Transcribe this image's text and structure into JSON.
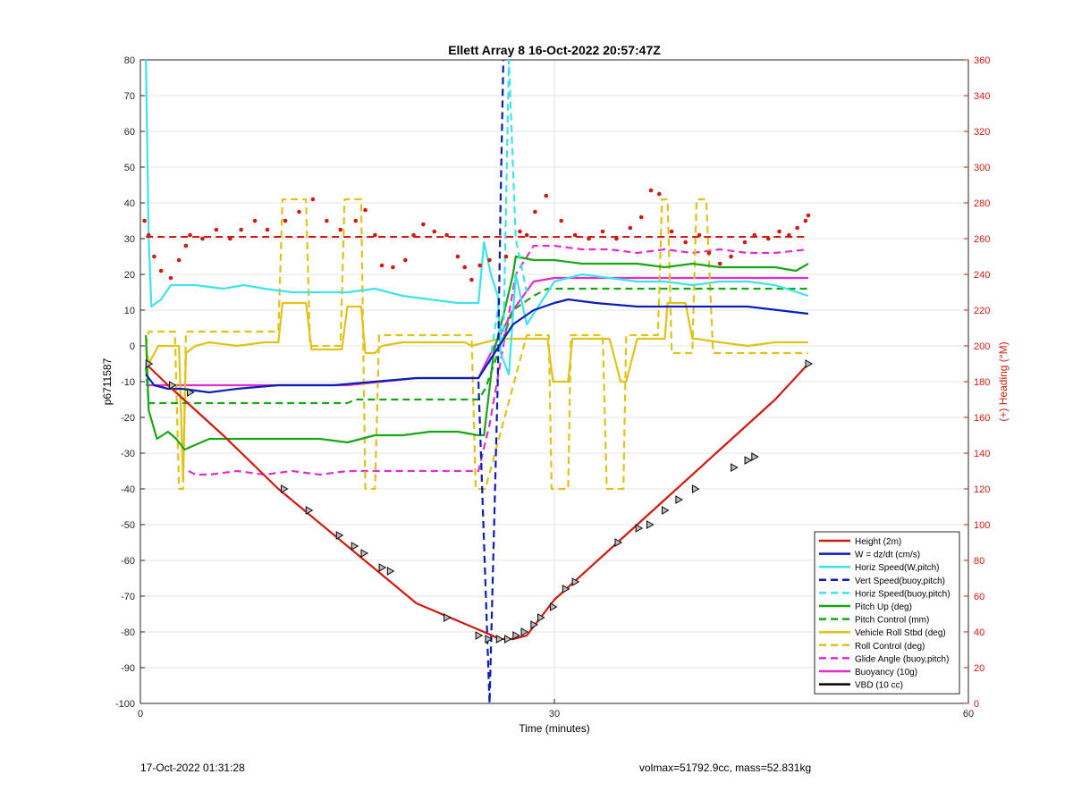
{
  "footer": {
    "left": "17-Oct-2022 01:31:28",
    "right": "volmax=51792.9cc, mass=52.831kg"
  },
  "chart_data": {
    "type": "line",
    "title": "Ellett Array 8 16-Oct-2022 20:57:47Z",
    "xlabel": "Time (minutes)",
    "ylabel": "p6711587",
    "y2label": "(+) Heading (°M)",
    "xlim": [
      0,
      60
    ],
    "ylim": [
      -100,
      80
    ],
    "y2lim": [
      0,
      360
    ],
    "xticks": [
      "0",
      "30",
      "60"
    ],
    "yticks": [
      "80",
      "70",
      "60",
      "50",
      "40",
      "30",
      "20",
      "10",
      "0",
      "-10",
      "-20",
      "-30",
      "-40",
      "-50",
      "-60",
      "-70",
      "-80",
      "-90",
      "-100"
    ],
    "y2ticks": [
      "360",
      "340",
      "320",
      "300",
      "280",
      "260",
      "240",
      "220",
      "200",
      "180",
      "160",
      "140",
      "120",
      "100",
      "80",
      "60",
      "40",
      "20",
      "0"
    ],
    "grid": true,
    "legend_position": "bottom-right",
    "colors": {
      "red": "#d11a0f",
      "blue": "#0a1eb4",
      "cyan": "#3ee3ea",
      "green": "#16a616",
      "yellow": "#e0c218",
      "magenta": "#de2ed2",
      "black": "#000000"
    },
    "series": [
      {
        "name": "Height (2m)",
        "color": "red",
        "style": "solid",
        "x": [
          0.4,
          2,
          6,
          10,
          15,
          20,
          25.5,
          26,
          27,
          28,
          30,
          34,
          38,
          42,
          46,
          48.4
        ],
        "y": [
          -5,
          -11,
          -25,
          -40,
          -56,
          -72,
          -81,
          -82,
          -82,
          -81,
          -71,
          -57,
          -43,
          -29,
          -15,
          -5
        ]
      },
      {
        "name": "W = dz/dt (cm/s)",
        "color": "blue",
        "style": "solid",
        "x": [
          0.4,
          1,
          2,
          3,
          5,
          7,
          10,
          14,
          17,
          20,
          22,
          24.5,
          25.5,
          27,
          28.5,
          30,
          31,
          33,
          36,
          40,
          44,
          48.4
        ],
        "y": [
          -8,
          -11,
          -12,
          -12,
          -13,
          -12,
          -11,
          -11,
          -10,
          -9,
          -9,
          -9,
          -3,
          6,
          10,
          12,
          13,
          12,
          11,
          11,
          11,
          9
        ]
      },
      {
        "name": "Horiz Speed(W,pitch)",
        "color": "cyan",
        "style": "solid",
        "x": [
          0.4,
          0.6,
          0.8,
          1.5,
          2.2,
          4,
          6,
          7.5,
          9,
          11,
          13,
          15,
          17,
          19,
          21,
          23,
          24.5,
          24.9,
          25.4,
          25.9,
          26.1,
          26.7,
          27.2,
          28,
          29,
          30,
          32,
          34,
          36,
          38,
          40,
          42,
          44,
          46,
          48.4
        ],
        "y": [
          80,
          30,
          11,
          13,
          17,
          17,
          16,
          17,
          16,
          15,
          15,
          15,
          16,
          14,
          13,
          12,
          12,
          29,
          20,
          14,
          -2,
          -8,
          20,
          6,
          12,
          18,
          20,
          19,
          18,
          18,
          17,
          18,
          18,
          17,
          14
        ]
      },
      {
        "name": "Vert Speed(buoy,pitch)",
        "color": "blue",
        "style": "dash",
        "x": [
          24.5,
          25.3,
          25.6,
          25.9,
          26.1,
          26.3,
          26.7,
          27.2
        ],
        "y": [
          -10,
          -100,
          -55,
          -10,
          40,
          80,
          100,
          100
        ]
      },
      {
        "name": "Horiz Speed(buoy,pitch)",
        "color": "cyan",
        "style": "dash",
        "x": [
          25.3,
          25.9,
          26.3,
          26.7,
          27.2,
          28
        ],
        "y": [
          -5,
          10,
          0,
          80,
          30,
          15
        ]
      },
      {
        "name": "Pitch Up (deg)",
        "color": "green",
        "style": "solid",
        "x": [
          0.4,
          0.6,
          1.2,
          2,
          2.6,
          3.2,
          5,
          7,
          9,
          11,
          13,
          15,
          17,
          19,
          21,
          23,
          24.5,
          24.9,
          25.6,
          26.4,
          27,
          27.2,
          28.5,
          30,
          32,
          34,
          36,
          38,
          40,
          42,
          44,
          46,
          47.5,
          48.4
        ],
        "y": [
          3,
          -18,
          -26,
          -24,
          -26,
          -29,
          -26,
          -26,
          -26,
          -26,
          -26,
          -27,
          -25,
          -25,
          -24,
          -24,
          -25,
          -25,
          -2,
          10,
          20,
          25,
          24,
          24,
          23,
          23,
          23,
          22,
          23,
          22,
          22,
          22,
          21,
          23
        ]
      },
      {
        "name": "Pitch Control (mm)",
        "color": "green",
        "style": "dash",
        "x": [
          0.4,
          0.6,
          1.2,
          10,
          15,
          15.6,
          20,
          24.5,
          25,
          27,
          28.5,
          29.5,
          48.4
        ],
        "y": [
          -6,
          -16,
          -16,
          -16,
          -16,
          -15,
          -15,
          -15,
          -12,
          10,
          14,
          16,
          16
        ]
      },
      {
        "name": "Vehicle Roll Stbd (deg)",
        "color": "yellow",
        "style": "solid",
        "x": [
          0.4,
          0.6,
          1.3,
          2.8,
          3.1,
          3.3,
          4,
          5,
          7,
          9,
          10,
          10.3,
          12,
          12.4,
          14.6,
          15,
          16,
          16.3,
          17,
          17.5,
          19,
          21,
          22,
          22.3,
          23.3,
          23.5,
          24,
          26,
          28,
          29.5,
          29.9,
          31,
          31.3,
          32,
          34,
          34.8,
          35.2,
          36,
          37,
          38,
          38.2,
          39.5,
          40,
          40.3,
          42,
          44,
          46,
          48.4
        ],
        "y": [
          0,
          -5,
          0,
          0,
          -38,
          -2,
          0,
          1,
          0,
          1,
          1,
          12,
          12,
          -1,
          -1,
          11,
          11,
          -2,
          -2,
          0,
          1,
          1,
          1,
          1,
          1,
          1,
          0,
          2,
          2,
          2,
          -10,
          -10,
          2,
          2,
          2,
          -10,
          -10,
          2,
          2,
          2,
          12,
          12,
          2,
          2,
          1,
          0,
          1,
          1
        ]
      },
      {
        "name": "Roll Control (deg)",
        "color": "yellow",
        "style": "dash",
        "x": [
          0.4,
          0.6,
          1.2,
          2.5,
          2.8,
          3.1,
          3.3,
          10,
          10.3,
          12,
          12.3,
          14.5,
          14.8,
          16,
          16.3,
          17,
          17.3,
          24,
          24.3,
          25,
          28,
          29.6,
          29.8,
          31,
          31.2,
          33.5,
          33.8,
          35,
          35.2,
          37.5,
          37.8,
          38.2,
          38.5,
          40,
          40.3,
          41,
          41.5,
          48.4
        ],
        "y": [
          0,
          4,
          4,
          4,
          -40,
          -40,
          4,
          4,
          41,
          41,
          0,
          0,
          41,
          41,
          -40,
          -40,
          3,
          3,
          -40,
          -40,
          3,
          3,
          -40,
          -40,
          3,
          3,
          -40,
          -40,
          3,
          3,
          41,
          41,
          -2,
          -2,
          41,
          41,
          -2,
          -2
        ]
      },
      {
        "name": "Glide Angle (buoy,pitch)",
        "color": "magenta",
        "style": "dash",
        "x": [
          3.5,
          4,
          5,
          7,
          9,
          11,
          13,
          15,
          17,
          19,
          21,
          23,
          24.5,
          25.3,
          26.3,
          27.2,
          28.5,
          30,
          32,
          34,
          36,
          38,
          40,
          42,
          44,
          46,
          48.4
        ],
        "y": [
          -35,
          -36,
          -36,
          -35,
          -36,
          -35,
          -36,
          -35,
          -35,
          -35,
          -35,
          -35,
          -35,
          -22,
          0,
          20,
          28,
          28,
          27,
          27,
          26,
          27,
          26,
          27,
          26,
          26,
          27
        ]
      },
      {
        "name": "Buoyancy (10g)",
        "color": "magenta",
        "style": "solid",
        "x": [
          0.4,
          1,
          5,
          10,
          15,
          20,
          24.5,
          25,
          27,
          28.5,
          30,
          32,
          34,
          36,
          38,
          40,
          42,
          44,
          46,
          48.4
        ],
        "y": [
          -11,
          -11,
          -11,
          -11,
          -11,
          -9,
          -9,
          -5,
          10,
          18,
          19,
          19,
          19,
          19,
          19,
          19,
          19,
          19,
          19,
          19
        ]
      },
      {
        "name": "VBD (10 cc)",
        "color": "black",
        "style": "solid",
        "x": [
          0.4,
          0.6,
          1.2,
          5,
          10,
          15,
          20,
          24.8,
          25.5,
          27,
          28.5,
          29.5,
          36,
          39,
          42,
          48.4
        ],
        "y": [
          -8,
          -12,
          -12,
          -12,
          -12,
          -12,
          -12,
          -12,
          -6,
          7,
          14,
          16,
          16,
          18,
          18,
          18
        ]
      }
    ],
    "heading_series": {
      "name": "Heading",
      "axis": "right",
      "color": "red",
      "reference_heading": 261,
      "points": [
        {
          "t": 0.3,
          "v": 270
        },
        {
          "t": 0.6,
          "v": 262
        },
        {
          "t": 1.0,
          "v": 250
        },
        {
          "t": 1.5,
          "v": 242
        },
        {
          "t": 2.2,
          "v": 238
        },
        {
          "t": 2.8,
          "v": 248
        },
        {
          "t": 3.3,
          "v": 256
        },
        {
          "t": 3.6,
          "v": 262
        },
        {
          "t": 4.5,
          "v": 260
        },
        {
          "t": 5.5,
          "v": 265
        },
        {
          "t": 6.5,
          "v": 260
        },
        {
          "t": 7.3,
          "v": 265
        },
        {
          "t": 8.3,
          "v": 270
        },
        {
          "t": 9.2,
          "v": 265
        },
        {
          "t": 10.5,
          "v": 270
        },
        {
          "t": 11.5,
          "v": 275
        },
        {
          "t": 12.5,
          "v": 282
        },
        {
          "t": 13.5,
          "v": 270
        },
        {
          "t": 14.5,
          "v": 265
        },
        {
          "t": 15.6,
          "v": 270
        },
        {
          "t": 16.3,
          "v": 276
        },
        {
          "t": 17.0,
          "v": 262
        },
        {
          "t": 17.5,
          "v": 245
        },
        {
          "t": 18.3,
          "v": 244
        },
        {
          "t": 19.2,
          "v": 248
        },
        {
          "t": 19.8,
          "v": 262
        },
        {
          "t": 20.5,
          "v": 268
        },
        {
          "t": 21.3,
          "v": 264
        },
        {
          "t": 22.2,
          "v": 262
        },
        {
          "t": 23.0,
          "v": 250
        },
        {
          "t": 23.5,
          "v": 244
        },
        {
          "t": 24.0,
          "v": 237
        },
        {
          "t": 24.6,
          "v": 245
        },
        {
          "t": 25.3,
          "v": 248
        },
        {
          "t": 26.5,
          "v": 250
        },
        {
          "t": 27.5,
          "v": 264
        },
        {
          "t": 28.0,
          "v": 262
        },
        {
          "t": 28.6,
          "v": 275
        },
        {
          "t": 29.4,
          "v": 284
        },
        {
          "t": 30.5,
          "v": 270
        },
        {
          "t": 31.5,
          "v": 262
        },
        {
          "t": 32.5,
          "v": 260
        },
        {
          "t": 33.5,
          "v": 264
        },
        {
          "t": 34.5,
          "v": 260
        },
        {
          "t": 35.5,
          "v": 266
        },
        {
          "t": 36.3,
          "v": 272
        },
        {
          "t": 37.0,
          "v": 287
        },
        {
          "t": 37.6,
          "v": 285
        },
        {
          "t": 38.5,
          "v": 264
        },
        {
          "t": 39.5,
          "v": 258
        },
        {
          "t": 40.5,
          "v": 262
        },
        {
          "t": 41.2,
          "v": 252
        },
        {
          "t": 42.0,
          "v": 246
        },
        {
          "t": 42.8,
          "v": 250
        },
        {
          "t": 43.8,
          "v": 258
        },
        {
          "t": 44.5,
          "v": 262
        },
        {
          "t": 45.5,
          "v": 260
        },
        {
          "t": 46.3,
          "v": 264
        },
        {
          "t": 47.0,
          "v": 262
        },
        {
          "t": 47.6,
          "v": 266
        },
        {
          "t": 48.2,
          "v": 270
        },
        {
          "t": 48.4,
          "v": 273
        }
      ]
    },
    "depth_markers": [
      {
        "t": 0.6,
        "v": -5
      },
      {
        "t": 2.3,
        "v": -11
      },
      {
        "t": 3.6,
        "v": -13
      },
      {
        "t": 10.4,
        "v": -40
      },
      {
        "t": 12.2,
        "v": -46
      },
      {
        "t": 14.4,
        "v": -53
      },
      {
        "t": 15.5,
        "v": -56
      },
      {
        "t": 16.2,
        "v": -58
      },
      {
        "t": 17.5,
        "v": -62
      },
      {
        "t": 18.1,
        "v": -63
      },
      {
        "t": 22.2,
        "v": -76
      },
      {
        "t": 24.5,
        "v": -81
      },
      {
        "t": 25.2,
        "v": -82
      },
      {
        "t": 26.0,
        "v": -82
      },
      {
        "t": 26.6,
        "v": -82
      },
      {
        "t": 27.2,
        "v": -81
      },
      {
        "t": 27.8,
        "v": -80
      },
      {
        "t": 28.5,
        "v": -78
      },
      {
        "t": 29.0,
        "v": -76
      },
      {
        "t": 29.9,
        "v": -73
      },
      {
        "t": 30.8,
        "v": -68
      },
      {
        "t": 31.5,
        "v": -66
      },
      {
        "t": 34.6,
        "v": -55
      },
      {
        "t": 36.1,
        "v": -51
      },
      {
        "t": 36.9,
        "v": -50
      },
      {
        "t": 38.0,
        "v": -46
      },
      {
        "t": 39.0,
        "v": -43
      },
      {
        "t": 40.2,
        "v": -40
      },
      {
        "t": 43.0,
        "v": -34
      },
      {
        "t": 44.0,
        "v": -32
      },
      {
        "t": 44.5,
        "v": -31
      },
      {
        "t": 48.4,
        "v": -5
      }
    ]
  }
}
